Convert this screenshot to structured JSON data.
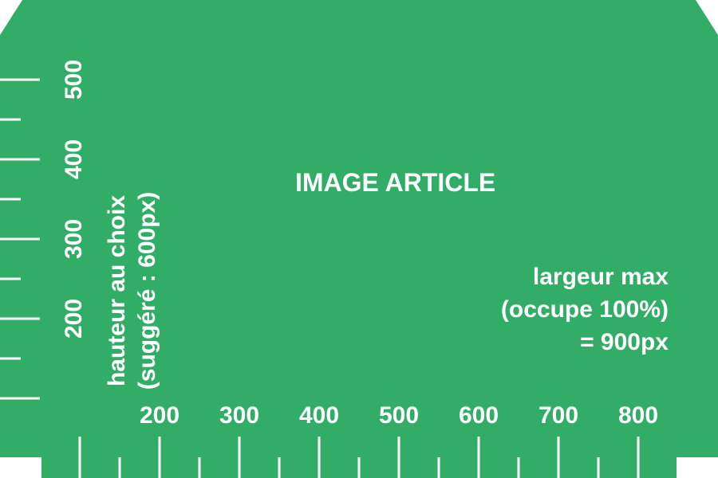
{
  "background_color": "#31ad67",
  "text_color": "#ffffff",
  "title": "IMAGE ARTICLE",
  "width_note": {
    "line1": "largeur max",
    "line2": "(occupe 100%)",
    "line3": "= 900px"
  },
  "height_note": {
    "line1": "hauteur au choix",
    "line2": "(suggéré : 600px)"
  },
  "x_ruler": {
    "labels": [
      "200",
      "300",
      "400",
      "500",
      "600",
      "700",
      "800"
    ]
  },
  "y_ruler": {
    "labels": [
      "500",
      "400",
      "300",
      "200"
    ]
  }
}
